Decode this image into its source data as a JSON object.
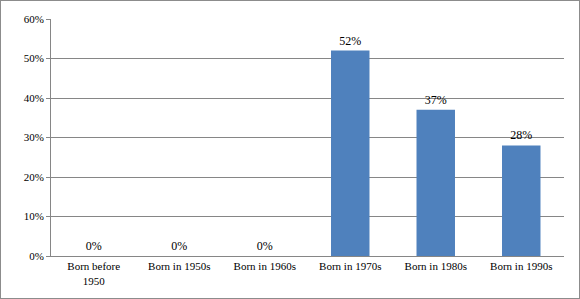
{
  "chart_data": {
    "type": "bar",
    "categories": [
      "Born before 1950",
      "Born in 1950s",
      "Born in 1960s",
      "Born in 1970s",
      "Born in 1980s",
      "Born in 1990s"
    ],
    "values": [
      0,
      0,
      0,
      52,
      37,
      28
    ],
    "value_labels": [
      "0%",
      "0%",
      "0%",
      "52%",
      "37%",
      "28%"
    ],
    "color": "#4f81bd",
    "ylim": [
      0,
      60
    ],
    "yticks": [
      {
        "value": 0,
        "label": "0%"
      },
      {
        "value": 10,
        "label": "10%"
      },
      {
        "value": 20,
        "label": "20%"
      },
      {
        "value": 30,
        "label": "30%"
      },
      {
        "value": 40,
        "label": "40%"
      },
      {
        "value": 50,
        "label": "50%"
      },
      {
        "value": 60,
        "label": "60%"
      }
    ],
    "grid": true,
    "data_labels": true
  }
}
